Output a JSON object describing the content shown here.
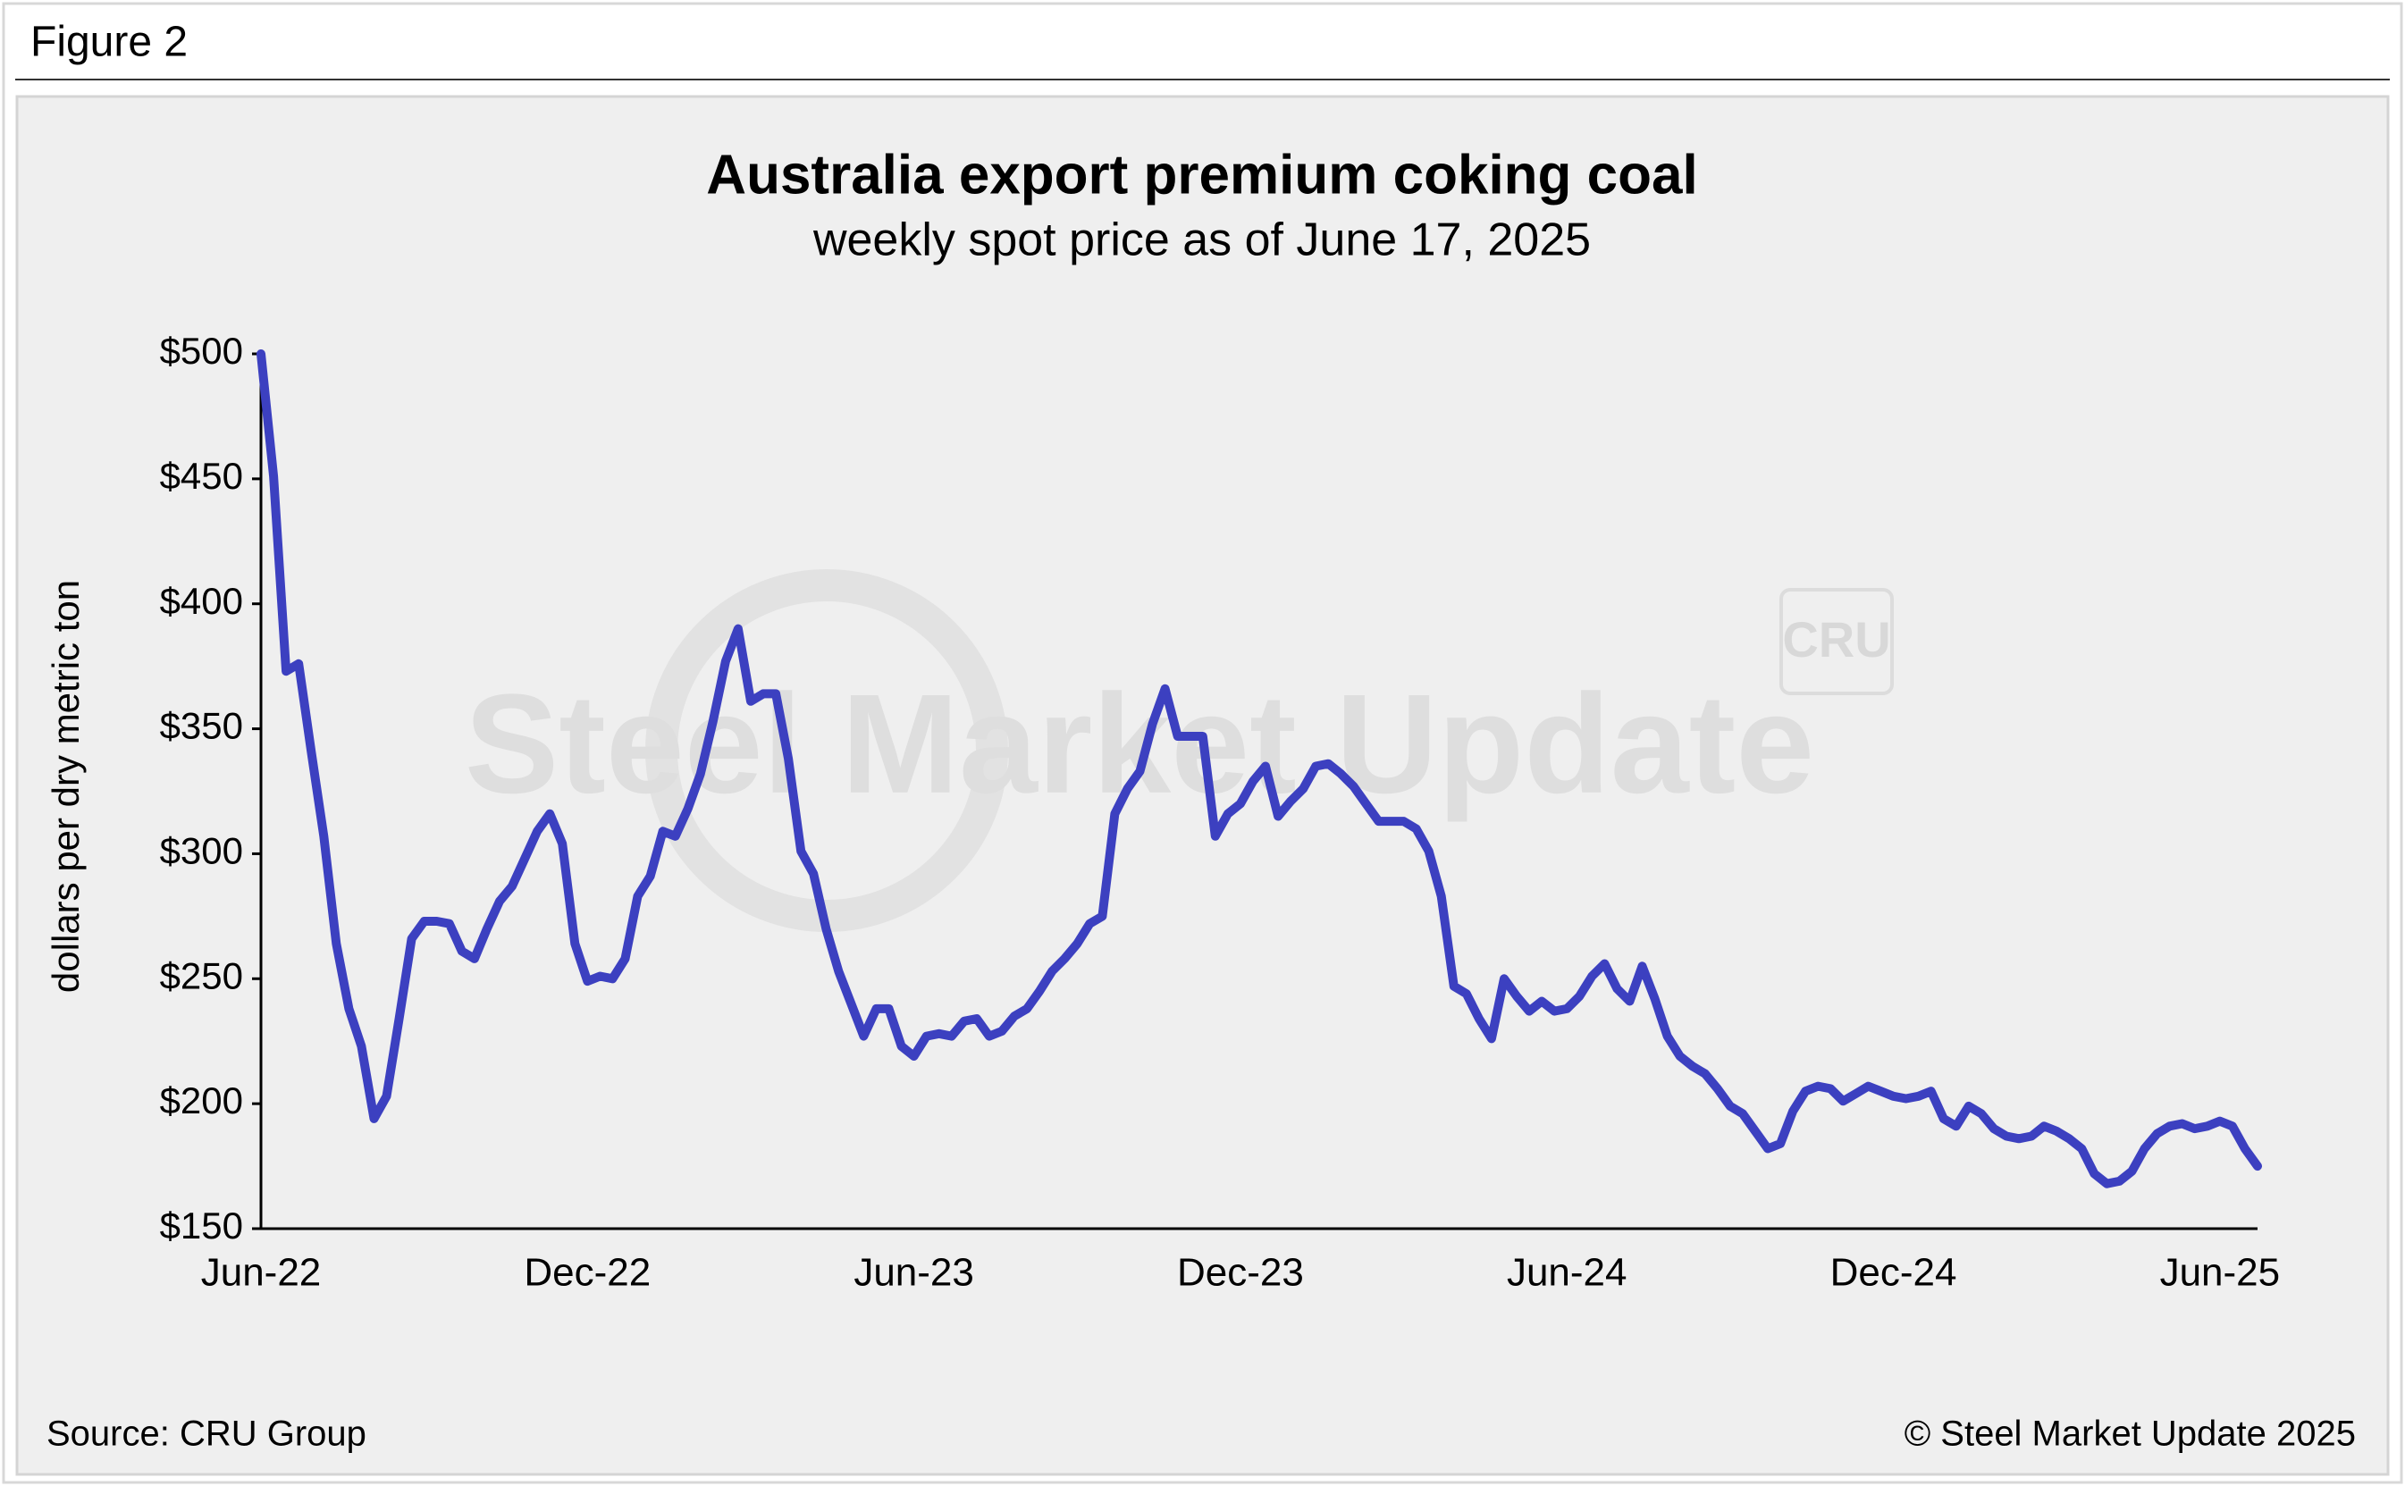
{
  "figure_label": "Figure 2",
  "chart_data": {
    "type": "line",
    "title": "Australia export premium coking coal",
    "subtitle": "weekly spot price as of June 17, 2025",
    "y_label": "dollars per dry metric ton",
    "source": "Source: CRU Group",
    "copyright": "© Steel Market Update 2025",
    "watermarks": [
      "Steel Market Update",
      "CRU"
    ],
    "color": "#3c40c0",
    "categories": [
      "Jun-22",
      null,
      null,
      null,
      null,
      null,
      null,
      null,
      null,
      null,
      null,
      null,
      null,
      null,
      null,
      null,
      null,
      null,
      null,
      null,
      null,
      null,
      null,
      null,
      null,
      null,
      "Dec-22",
      null,
      null,
      null,
      null,
      null,
      null,
      null,
      null,
      null,
      null,
      null,
      null,
      null,
      null,
      null,
      null,
      null,
      null,
      null,
      null,
      null,
      null,
      null,
      null,
      null,
      "Jun-23",
      null,
      null,
      null,
      null,
      null,
      null,
      null,
      null,
      null,
      null,
      null,
      null,
      null,
      null,
      null,
      null,
      null,
      null,
      null,
      null,
      null,
      null,
      null,
      null,
      null,
      "Dec-23",
      null,
      null,
      null,
      null,
      null,
      null,
      null,
      null,
      null,
      null,
      null,
      null,
      null,
      null,
      null,
      null,
      null,
      null,
      null,
      null,
      null,
      null,
      null,
      null,
      null,
      "Jun-24",
      null,
      null,
      null,
      null,
      null,
      null,
      null,
      null,
      null,
      null,
      null,
      null,
      null,
      null,
      null,
      null,
      null,
      null,
      null,
      null,
      null,
      null,
      null,
      null,
      null,
      "Dec-24",
      null,
      null,
      null,
      null,
      null,
      null,
      null,
      null,
      null,
      null,
      null,
      null,
      null,
      null,
      null,
      null,
      null,
      null,
      null,
      null,
      null,
      null,
      null,
      null,
      null,
      "Jun-25",
      null,
      null,
      null
    ],
    "values": [
      500,
      451,
      373,
      376,
      341,
      307,
      264,
      238,
      223,
      194,
      203,
      234,
      266,
      273,
      273,
      272,
      261,
      258,
      270,
      281,
      287,
      298,
      309,
      316,
      304,
      264,
      249,
      251,
      250,
      258,
      283,
      291,
      309,
      307,
      318,
      332,
      353,
      377,
      390,
      361,
      364,
      364,
      338,
      301,
      292,
      270,
      253,
      240,
      227,
      238,
      238,
      223,
      219,
      227,
      228,
      227,
      233,
      234,
      227,
      229,
      235,
      238,
      245,
      253,
      258,
      264,
      272,
      275,
      316,
      326,
      333,
      352,
      366,
      347,
      347,
      347,
      307,
      316,
      320,
      329,
      335,
      315,
      321,
      326,
      335,
      336,
      332,
      327,
      320,
      313,
      313,
      313,
      310,
      301,
      283,
      247,
      244,
      234,
      226,
      250,
      243,
      237,
      241,
      237,
      238,
      243,
      251,
      256,
      246,
      241,
      255,
      242,
      227,
      219,
      215,
      212,
      206,
      199,
      196,
      189,
      182,
      184,
      197,
      205,
      207,
      206,
      201,
      204,
      207,
      205,
      203,
      202,
      203,
      205,
      194,
      191,
      199,
      196,
      190,
      187,
      186,
      187,
      191,
      189,
      186,
      182,
      172,
      168,
      169,
      173,
      182,
      188,
      191,
      192,
      190,
      191,
      193,
      191,
      182,
      175
    ],
    "ylim": [
      150,
      500
    ],
    "yticks": [
      {
        "value": 150,
        "label": "$150"
      },
      {
        "value": 200,
        "label": "$200"
      },
      {
        "value": 250,
        "label": "$250"
      },
      {
        "value": 300,
        "label": "$300"
      },
      {
        "value": 350,
        "label": "$350"
      },
      {
        "value": 400,
        "label": "$400"
      },
      {
        "value": 450,
        "label": "$450"
      },
      {
        "value": 500,
        "label": "$500"
      }
    ],
    "grid": false
  }
}
